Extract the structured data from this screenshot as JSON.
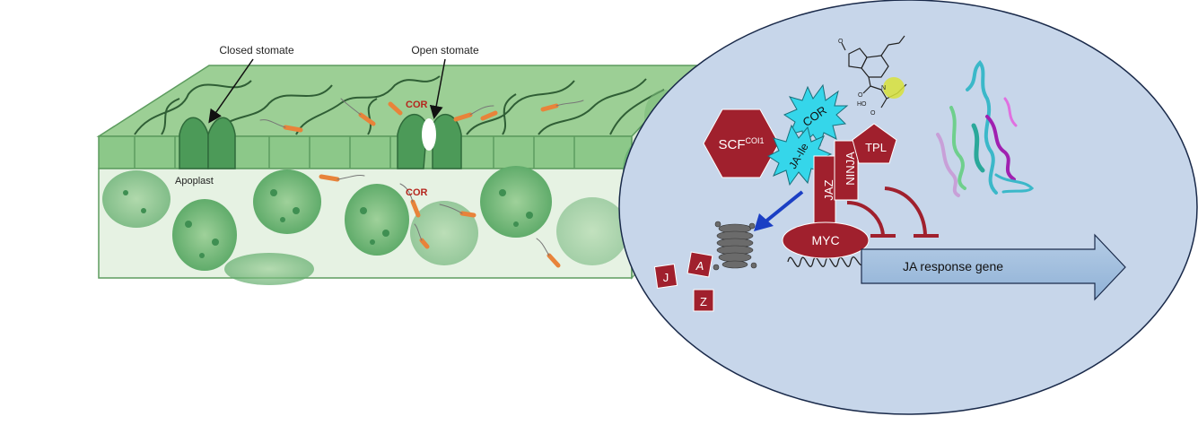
{
  "leaf": {
    "closed_stomate_label": "Closed stomate",
    "open_stomate_label": "Open stomate",
    "apoplast_label": "Apoplast",
    "cor_label_top": "COR",
    "cor_label_apoplast": "COR"
  },
  "nucleus": {
    "scf_label": "SCF",
    "scf_superscript": "COI1",
    "cor_star_label": "COR",
    "ja_ile_star_label": "JA-Ile",
    "jaz_label": "JAZ",
    "ninja_label": "NINJA",
    "tpl_label": "TPL",
    "myc_label": "MYC",
    "gene_label": "JA response gene",
    "degraded_j": "J",
    "degraded_a": "A",
    "degraded_z": "Z"
  },
  "colors": {
    "leaf_green": "#8fc98a",
    "dark_green": "#3f8f52",
    "bacteria_orange": "#e8833a",
    "cor_red": "#b5261e",
    "protein_red": "#a0202d",
    "star_cyan": "#35d6ea",
    "nucleus_fill": "#c7d6ea",
    "gene_arrow": "#9ebcdc",
    "arrow_blue": "#1b3fc4"
  }
}
